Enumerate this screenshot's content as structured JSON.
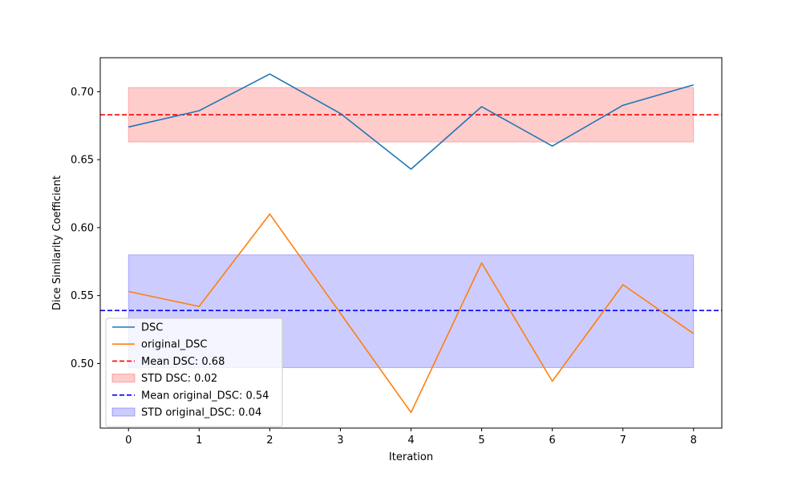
{
  "chart_data": {
    "type": "line",
    "title": "",
    "xlabel": "Iteration",
    "ylabel": "Dice Similarity Coefficient",
    "x": [
      0,
      1,
      2,
      3,
      4,
      5,
      6,
      7,
      8
    ],
    "xlim": [
      -0.4,
      8.4
    ],
    "ylim": [
      0.4525,
      0.725
    ],
    "x_ticks": [
      0,
      1,
      2,
      3,
      4,
      5,
      6,
      7,
      8
    ],
    "y_ticks": [
      0.5,
      0.55,
      0.6,
      0.65,
      0.7
    ],
    "y_tick_labels": [
      "0.50",
      "0.55",
      "0.60",
      "0.65",
      "0.70"
    ],
    "grid": false,
    "legend_position": "lower-left",
    "series": [
      {
        "name": "DSC",
        "color": "#1f77b4",
        "values": [
          0.674,
          0.686,
          0.713,
          0.684,
          0.643,
          0.689,
          0.66,
          0.69,
          0.705
        ]
      },
      {
        "name": "original_DSC",
        "color": "#ff7f0e",
        "values": [
          0.553,
          0.542,
          0.61,
          0.537,
          0.464,
          0.574,
          0.487,
          0.558,
          0.522
        ]
      }
    ],
    "reference_lines": [
      {
        "label": "Mean DSC: 0.68",
        "y": 0.683,
        "color": "#ff0000",
        "style": "dashed"
      },
      {
        "label": "Mean original_DSC: 0.54",
        "y": 0.539,
        "color": "#0000ff",
        "style": "dashed"
      }
    ],
    "bands": [
      {
        "label": "STD DSC: 0.02",
        "y_low": 0.663,
        "y_high": 0.703,
        "x_from": 0,
        "x_to": 8,
        "color": "#ff0000",
        "opacity": 0.2
      },
      {
        "label": "STD original_DSC: 0.04",
        "y_low": 0.497,
        "y_high": 0.58,
        "x_from": 0,
        "x_to": 8,
        "color": "#0000ff",
        "opacity": 0.2
      }
    ],
    "legend": [
      {
        "label": "DSC",
        "kind": "line",
        "color": "#1f77b4"
      },
      {
        "label": "original_DSC",
        "kind": "line",
        "color": "#ff7f0e"
      },
      {
        "label": "Mean DSC: 0.68",
        "kind": "dashed",
        "color": "#ff0000"
      },
      {
        "label": "STD DSC: 0.02",
        "kind": "patch",
        "color": "#ff0000"
      },
      {
        "label": "Mean original_DSC: 0.54",
        "kind": "dashed",
        "color": "#0000ff"
      },
      {
        "label": "STD original_DSC: 0.04",
        "kind": "patch",
        "color": "#0000ff"
      }
    ]
  }
}
